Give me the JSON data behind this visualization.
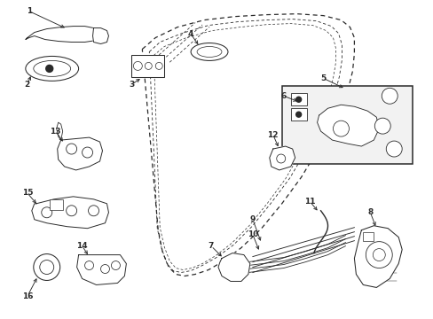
{
  "bg_color": "#ffffff",
  "line_color": "#2a2a2a",
  "figsize": [
    4.89,
    3.6
  ],
  "dpi": 100,
  "lw": 0.75
}
